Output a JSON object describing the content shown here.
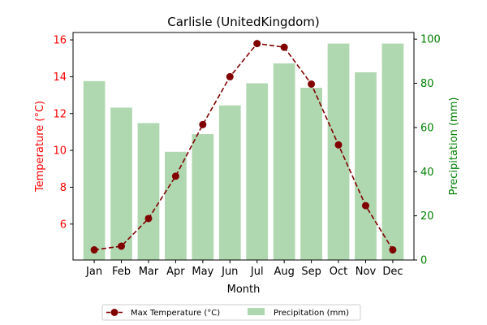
{
  "chart_data": {
    "type": "bar+line",
    "title": "Carlisle (UnitedKingdom)",
    "xlabel": "Month",
    "ylabel_left": "Temperature (°C)",
    "ylabel_right": "Precipitation (mm)",
    "categories": [
      "Jan",
      "Feb",
      "Mar",
      "Apr",
      "May",
      "Jun",
      "Jul",
      "Aug",
      "Sep",
      "Oct",
      "Nov",
      "Dec"
    ],
    "temperature": {
      "name": "Max Temperature (°C)",
      "values": [
        4.6,
        4.8,
        6.3,
        8.6,
        11.4,
        14.0,
        15.8,
        15.6,
        13.6,
        10.3,
        7.0,
        4.6
      ],
      "ylim": [
        4.05,
        16.4
      ],
      "ticks": [
        6,
        8,
        10,
        12,
        14,
        16
      ],
      "color": "#800000",
      "axis_color": "#ff0000"
    },
    "precipitation": {
      "name": "Precipitation (mm)",
      "values": [
        81,
        69,
        62,
        49,
        57,
        70,
        80,
        89,
        78,
        98,
        85,
        98
      ],
      "ylim": [
        0,
        103
      ],
      "ticks": [
        0,
        20,
        40,
        60,
        80,
        100
      ],
      "color": "#b0d8b0",
      "axis_color": "#008000"
    },
    "legend_placement": "bottom-center"
  }
}
